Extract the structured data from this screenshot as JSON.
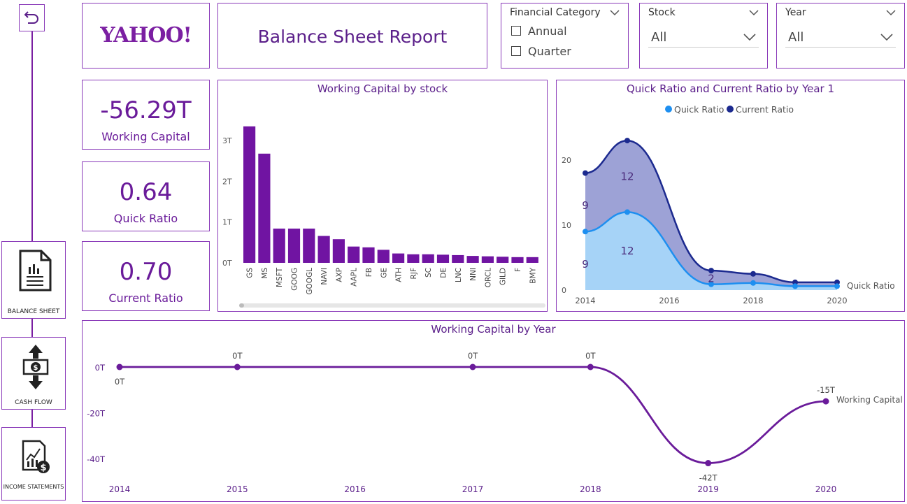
{
  "nav": {
    "items": [
      {
        "label": "BALANCE SHEET"
      },
      {
        "label": "CASH FLOW"
      },
      {
        "label": "INCOME STATEMENTS"
      }
    ]
  },
  "logo": {
    "text": "YAHOO!"
  },
  "header": {
    "title": "Balance Sheet Report"
  },
  "slicers": {
    "financial_category": {
      "title": "Financial Category",
      "options": [
        "Annual",
        "Quarter"
      ]
    },
    "stock": {
      "title": "Stock",
      "value": "All"
    },
    "year": {
      "title": "Year",
      "value": "All"
    }
  },
  "kpis": [
    {
      "value": "-56.29T",
      "label": "Working Capital"
    },
    {
      "value": "0.64",
      "label": "Quick Ratio"
    },
    {
      "value": "0.70",
      "label": "Current Ratio"
    }
  ],
  "colors": {
    "purple": "#6a1b9a",
    "bar": "#7014a2",
    "quick": "#1e8ff0",
    "current": "#1c2a8f"
  },
  "chart_data": [
    {
      "type": "bar",
      "title": "Working Capital by stock",
      "categories": [
        "GS",
        "MS",
        "MSFT",
        "GOOG",
        "GOOGL",
        "NAVI",
        "AXP",
        "AAPL",
        "FB",
        "GE",
        "ATH",
        "RJF",
        "SC",
        "DE",
        "LNC",
        "NNI",
        "ORCL",
        "GILD",
        "F",
        "BMY"
      ],
      "values": [
        3.35,
        2.68,
        0.84,
        0.84,
        0.84,
        0.66,
        0.58,
        0.4,
        0.38,
        0.32,
        0.23,
        0.21,
        0.21,
        0.2,
        0.19,
        0.17,
        0.16,
        0.15,
        0.14,
        0.14
      ],
      "yticks": [
        "0T",
        "1T",
        "2T",
        "3T"
      ],
      "ylim": [
        0,
        3.5
      ]
    },
    {
      "type": "area",
      "title": "Quick Ratio and Current Ratio by Year 1",
      "legend": [
        "Quick Ratio",
        "Current Ratio"
      ],
      "x": [
        2014,
        2015,
        2017,
        2018,
        2019,
        2020
      ],
      "xticks": [
        "2014",
        "2016",
        "2018",
        "2020"
      ],
      "yticks": [
        "0",
        "10",
        "20"
      ],
      "ylim": [
        0,
        24
      ],
      "series": [
        {
          "name": "Quick Ratio",
          "values": [
            9,
            12,
            0.9,
            1.1,
            0.6,
            0.6
          ]
        },
        {
          "name": "Current Ratio",
          "values": [
            18,
            23,
            3,
            2.5,
            1.2,
            1.2
          ]
        }
      ],
      "labels": [
        {
          "text": "9",
          "x": 2014,
          "y": 4
        },
        {
          "text": "12",
          "x": 2015,
          "y": 6
        },
        {
          "text": "9",
          "x": 2014,
          "y": 13
        },
        {
          "text": "12",
          "x": 2015,
          "y": 17.5
        },
        {
          "text": "2",
          "x": 2017,
          "y": 1.8
        }
      ],
      "end_label": "Quick Ratio"
    },
    {
      "type": "line",
      "title": "Working Capital by Year",
      "x": [
        2014,
        2015,
        2017,
        2018,
        2019,
        2020
      ],
      "xticks": [
        "2014",
        "2015",
        "2016",
        "2017",
        "2018",
        "2019",
        "2020"
      ],
      "values": [
        0,
        0,
        0,
        0,
        -42,
        -15
      ],
      "point_labels": [
        "0T",
        "0T",
        "0T",
        "0T",
        "-42T",
        "-15T"
      ],
      "yticks": [
        "0T",
        "-20T",
        "-40T"
      ],
      "ylim": [
        -47,
        5
      ],
      "end_label": "Working Capital"
    }
  ]
}
